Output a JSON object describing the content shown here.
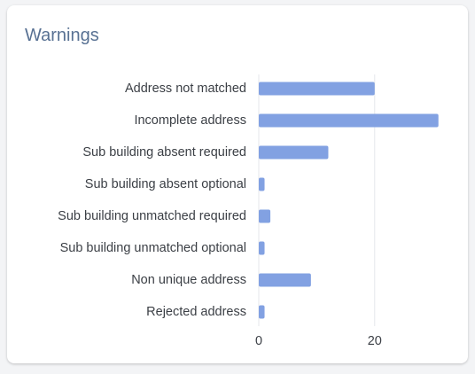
{
  "card": {
    "title": "Warnings"
  },
  "chart_data": {
    "type": "bar",
    "orientation": "horizontal",
    "categories": [
      "Address not matched",
      "Incomplete address",
      "Sub building absent required",
      "Sub building absent optional",
      "Sub building unmatched required",
      "Sub building unmatched optional",
      "Non unique address",
      "Rejected address"
    ],
    "values": [
      20,
      31,
      12,
      1,
      2,
      1,
      9,
      1
    ],
    "xticks": [
      0,
      20
    ],
    "xlim": [
      0,
      31.5
    ],
    "grid": true,
    "legend": "none",
    "colors": {
      "bar": "#82a1e2",
      "grid": "#e5e7eb",
      "title": "#587193",
      "text": "#3b3f45"
    }
  }
}
